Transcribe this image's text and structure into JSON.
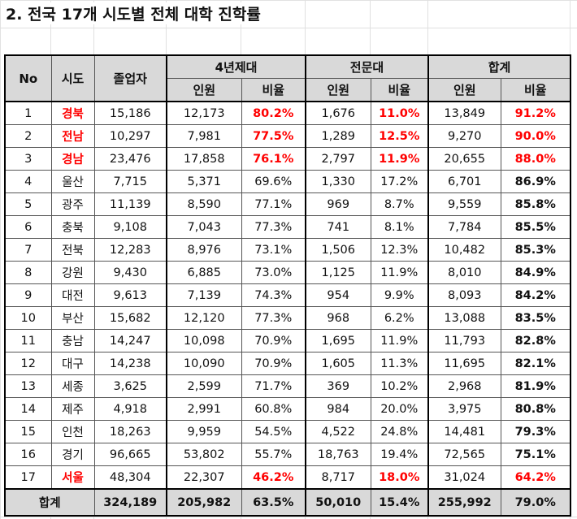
{
  "title": "2. 전국 17개 시도별 전체 대학 진학률",
  "colors": {
    "highlight": "#ff0000",
    "header_bg": "#d9d9d9"
  },
  "header": {
    "no": "No",
    "region": "시도",
    "graduates": "졸업자",
    "univ4": "4년제대",
    "college": "전문대",
    "total": "합계",
    "count": "인원",
    "ratio": "비율"
  },
  "rows": [
    {
      "no": "1",
      "region": "경북",
      "graduates": "15,186",
      "u4_count": "12,173",
      "u4_ratio": "80.2%",
      "c_count": "1,676",
      "c_ratio": "11.0%",
      "t_count": "13,849",
      "t_ratio": "91.2%",
      "highlight": true
    },
    {
      "no": "2",
      "region": "전남",
      "graduates": "10,297",
      "u4_count": "7,981",
      "u4_ratio": "77.5%",
      "c_count": "1,289",
      "c_ratio": "12.5%",
      "t_count": "9,270",
      "t_ratio": "90.0%",
      "highlight": true
    },
    {
      "no": "3",
      "region": "경남",
      "graduates": "23,476",
      "u4_count": "17,858",
      "u4_ratio": "76.1%",
      "c_count": "2,797",
      "c_ratio": "11.9%",
      "t_count": "20,655",
      "t_ratio": "88.0%",
      "highlight": true
    },
    {
      "no": "4",
      "region": "울산",
      "graduates": "7,715",
      "u4_count": "5,371",
      "u4_ratio": "69.6%",
      "c_count": "1,330",
      "c_ratio": "17.2%",
      "t_count": "6,701",
      "t_ratio": "86.9%",
      "highlight": false
    },
    {
      "no": "5",
      "region": "광주",
      "graduates": "11,139",
      "u4_count": "8,590",
      "u4_ratio": "77.1%",
      "c_count": "969",
      "c_ratio": "8.7%",
      "t_count": "9,559",
      "t_ratio": "85.8%",
      "highlight": false
    },
    {
      "no": "6",
      "region": "충북",
      "graduates": "9,108",
      "u4_count": "7,043",
      "u4_ratio": "77.3%",
      "c_count": "741",
      "c_ratio": "8.1%",
      "t_count": "7,784",
      "t_ratio": "85.5%",
      "highlight": false
    },
    {
      "no": "7",
      "region": "전북",
      "graduates": "12,283",
      "u4_count": "8,976",
      "u4_ratio": "73.1%",
      "c_count": "1,506",
      "c_ratio": "12.3%",
      "t_count": "10,482",
      "t_ratio": "85.3%",
      "highlight": false
    },
    {
      "no": "8",
      "region": "강원",
      "graduates": "9,430",
      "u4_count": "6,885",
      "u4_ratio": "73.0%",
      "c_count": "1,125",
      "c_ratio": "11.9%",
      "t_count": "8,010",
      "t_ratio": "84.9%",
      "highlight": false
    },
    {
      "no": "9",
      "region": "대전",
      "graduates": "9,613",
      "u4_count": "7,139",
      "u4_ratio": "74.3%",
      "c_count": "954",
      "c_ratio": "9.9%",
      "t_count": "8,093",
      "t_ratio": "84.2%",
      "highlight": false
    },
    {
      "no": "10",
      "region": "부산",
      "graduates": "15,682",
      "u4_count": "12,120",
      "u4_ratio": "77.3%",
      "c_count": "968",
      "c_ratio": "6.2%",
      "t_count": "13,088",
      "t_ratio": "83.5%",
      "highlight": false
    },
    {
      "no": "11",
      "region": "충남",
      "graduates": "14,247",
      "u4_count": "10,098",
      "u4_ratio": "70.9%",
      "c_count": "1,695",
      "c_ratio": "11.9%",
      "t_count": "11,793",
      "t_ratio": "82.8%",
      "highlight": false
    },
    {
      "no": "12",
      "region": "대구",
      "graduates": "14,238",
      "u4_count": "10,090",
      "u4_ratio": "70.9%",
      "c_count": "1,605",
      "c_ratio": "11.3%",
      "t_count": "11,695",
      "t_ratio": "82.1%",
      "highlight": false
    },
    {
      "no": "13",
      "region": "세종",
      "graduates": "3,625",
      "u4_count": "2,599",
      "u4_ratio": "71.7%",
      "c_count": "369",
      "c_ratio": "10.2%",
      "t_count": "2,968",
      "t_ratio": "81.9%",
      "highlight": false
    },
    {
      "no": "14",
      "region": "제주",
      "graduates": "4,918",
      "u4_count": "2,991",
      "u4_ratio": "60.8%",
      "c_count": "984",
      "c_ratio": "20.0%",
      "t_count": "3,975",
      "t_ratio": "80.8%",
      "highlight": false
    },
    {
      "no": "15",
      "region": "인천",
      "graduates": "18,263",
      "u4_count": "9,959",
      "u4_ratio": "54.5%",
      "c_count": "4,522",
      "c_ratio": "24.8%",
      "t_count": "14,481",
      "t_ratio": "79.3%",
      "highlight": false
    },
    {
      "no": "16",
      "region": "경기",
      "graduates": "96,665",
      "u4_count": "53,802",
      "u4_ratio": "55.7%",
      "c_count": "18,763",
      "c_ratio": "19.4%",
      "t_count": "72,565",
      "t_ratio": "75.1%",
      "highlight": false
    },
    {
      "no": "17",
      "region": "서울",
      "graduates": "48,304",
      "u4_count": "22,307",
      "u4_ratio": "46.2%",
      "c_count": "8,717",
      "c_ratio": "18.0%",
      "t_count": "31,024",
      "t_ratio": "64.2%",
      "highlight": true
    }
  ],
  "total": {
    "label": "합계",
    "graduates": "324,189",
    "u4_count": "205,982",
    "u4_ratio": "63.5%",
    "c_count": "50,010",
    "c_ratio": "15.4%",
    "t_count": "255,992",
    "t_ratio": "79.0%"
  }
}
